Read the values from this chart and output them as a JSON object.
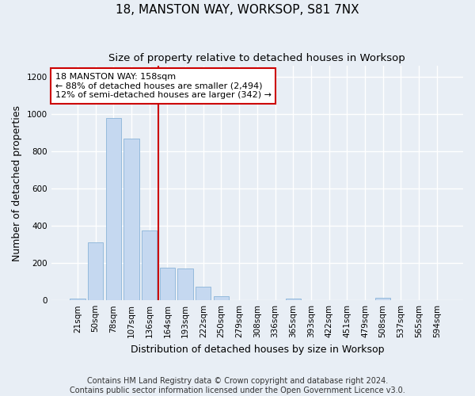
{
  "title": "18, MANSTON WAY, WORKSOP, S81 7NX",
  "subtitle": "Size of property relative to detached houses in Worksop",
  "xlabel": "Distribution of detached houses by size in Worksop",
  "ylabel": "Number of detached properties",
  "footer": "Contains HM Land Registry data © Crown copyright and database right 2024.\nContains public sector information licensed under the Open Government Licence v3.0.",
  "bar_labels": [
    "21sqm",
    "50sqm",
    "78sqm",
    "107sqm",
    "136sqm",
    "164sqm",
    "193sqm",
    "222sqm",
    "250sqm",
    "279sqm",
    "308sqm",
    "336sqm",
    "365sqm",
    "393sqm",
    "422sqm",
    "451sqm",
    "479sqm",
    "508sqm",
    "537sqm",
    "565sqm",
    "594sqm"
  ],
  "bar_values": [
    10,
    310,
    980,
    870,
    375,
    175,
    170,
    75,
    20,
    0,
    0,
    0,
    10,
    0,
    0,
    0,
    0,
    15,
    0,
    0,
    0
  ],
  "bar_color": "#c5d8f0",
  "bar_edge_color": "#8ab4d8",
  "vline_x_index": 5,
  "annotation_text": "18 MANSTON WAY: 158sqm\n← 88% of detached houses are smaller (2,494)\n12% of semi-detached houses are larger (342) →",
  "annotation_box_color": "#ffffff",
  "annotation_box_edge_color": "#cc0000",
  "vline_color": "#cc0000",
  "ylim": [
    0,
    1260
  ],
  "yticks": [
    0,
    200,
    400,
    600,
    800,
    1000,
    1200
  ],
  "background_color": "#e8eef5",
  "plot_bg_color": "#e8eef5",
  "grid_color": "#ffffff",
  "title_fontsize": 11,
  "subtitle_fontsize": 9.5,
  "axis_label_fontsize": 9,
  "tick_fontsize": 7.5,
  "footer_fontsize": 7,
  "annot_fontsize": 8
}
